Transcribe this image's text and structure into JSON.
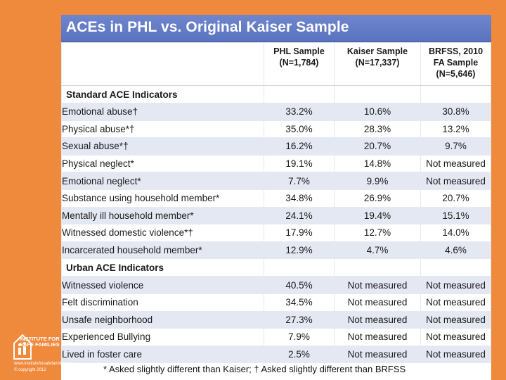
{
  "title": "ACEs in PHL vs. Original Kaiser Sample",
  "columns": [
    "PHL Sample\n(N=1,784)",
    "Kaiser Sample\n(N=17,337)",
    "BRFSS, 2010\nFA Sample\n(N=5,646)"
  ],
  "sections": [
    {
      "heading": "Standard ACE Indicators",
      "rows": [
        {
          "label": "Emotional abuse†",
          "values": [
            "33.2%",
            "10.6%",
            "30.8%"
          ]
        },
        {
          "label": "Physical abuse*†",
          "values": [
            "35.0%",
            "28.3%",
            "13.2%"
          ]
        },
        {
          "label": "Sexual abuse*†",
          "values": [
            "16.2%",
            "20.7%",
            "9.7%"
          ]
        },
        {
          "label": "Physical neglect*",
          "values": [
            "19.1%",
            "14.8%",
            "Not measured"
          ]
        },
        {
          "label": "Emotional neglect*",
          "values": [
            "7.7%",
            "9.9%",
            "Not measured"
          ]
        },
        {
          "label": "Substance using household member*",
          "values": [
            "34.8%",
            "26.9%",
            "20.7%"
          ]
        },
        {
          "label": "Mentally ill household member*",
          "values": [
            "24.1%",
            "19.4%",
            "15.1%"
          ]
        },
        {
          "label": "Witnessed domestic violence*†",
          "values": [
            "17.9%",
            "12.7%",
            "14.0%"
          ]
        },
        {
          "label": "Incarcerated household member*",
          "values": [
            "12.9%",
            "4.7%",
            "4.6%"
          ]
        }
      ]
    },
    {
      "heading": "Urban ACE Indicators",
      "rows": [
        {
          "label": "Witnessed violence",
          "values": [
            "40.5%",
            "Not measured",
            "Not measured"
          ]
        },
        {
          "label": "Felt discrimination",
          "values": [
            "34.5%",
            "Not measured",
            "Not measured"
          ]
        },
        {
          "label": "Unsafe neighborhood",
          "values": [
            "27.3%",
            "Not measured",
            "Not measured"
          ]
        },
        {
          "label": "Experienced Bullying",
          "values": [
            "7.9%",
            "Not measured",
            "Not measured"
          ]
        },
        {
          "label": "Lived in foster care",
          "values": [
            "2.5%",
            "Not measured",
            "Not measured"
          ]
        }
      ]
    }
  ],
  "footnote": "* Asked slightly different than Kaiser; † Asked slightly different than BRFSS",
  "logo": {
    "name": "INSTITUTE FOR SAFE FAMILIES",
    "url": "www.instituteforsafefamilies.org",
    "copyright": "© copyright 2012"
  },
  "colors": {
    "background": "#ef8a3c",
    "title_bar": "#5a73c0",
    "row_stripe": "#e4e8f3"
  }
}
